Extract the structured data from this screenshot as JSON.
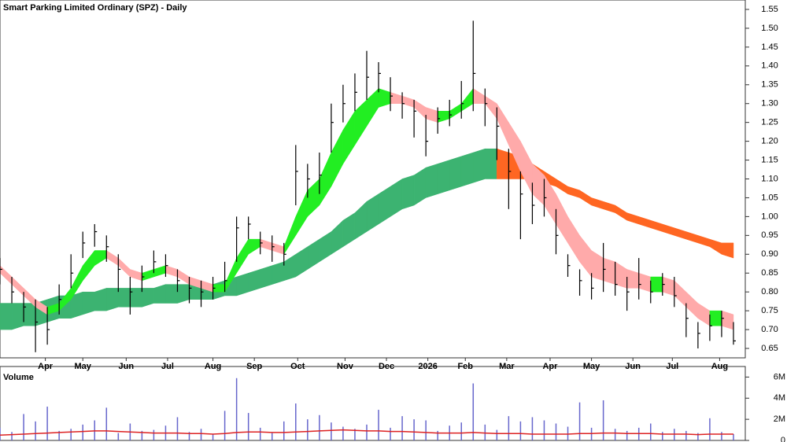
{
  "chart_data": {
    "type": "ohlc",
    "title": "Smart Parking Limited Ordinary (SPZ) - Daily",
    "x": [
      0,
      6,
      12,
      18,
      24,
      30,
      36,
      42,
      48,
      54,
      60,
      66,
      72,
      78,
      84,
      90,
      96,
      102,
      108,
      114,
      120,
      126,
      132,
      138,
      144,
      150,
      156,
      162,
      168,
      174,
      180,
      186,
      192,
      198,
      204,
      210,
      216,
      222,
      228,
      234,
      240,
      246,
      252,
      258,
      264,
      270,
      276,
      282,
      288,
      294,
      300,
      306,
      312,
      318,
      324,
      330,
      336,
      342,
      348,
      354,
      360,
      366,
      372
    ],
    "xlim": [
      0,
      378
    ],
    "xticks": [
      {
        "value": 23,
        "label": "Apr"
      },
      {
        "value": 42,
        "label": "May"
      },
      {
        "value": 64,
        "label": "Jun"
      },
      {
        "value": 85,
        "label": "Jul"
      },
      {
        "value": 108,
        "label": "Aug"
      },
      {
        "value": 129,
        "label": "Sep"
      },
      {
        "value": 151,
        "label": "Oct"
      },
      {
        "value": 175,
        "label": "Nov"
      },
      {
        "value": 196,
        "label": "Dec"
      },
      {
        "value": 217,
        "label": "2026"
      },
      {
        "value": 236,
        "label": "Feb"
      },
      {
        "value": 257,
        "label": "Mar"
      },
      {
        "value": 279,
        "label": "Apr"
      },
      {
        "value": 300,
        "label": "May"
      },
      {
        "value": 321,
        "label": "Jun"
      },
      {
        "value": 341,
        "label": "Jul"
      },
      {
        "value": 365,
        "label": "Aug"
      }
    ],
    "ylim": [
      0.625,
      1.575
    ],
    "yticks": [
      1.55,
      {
        "value": 1.5,
        "label": "1.50"
      },
      1.45,
      {
        "value": 1.4,
        "label": "1.40"
      },
      1.35,
      {
        "value": 1.3,
        "label": "1.30"
      },
      1.25,
      {
        "value": 1.2,
        "label": "1.20"
      },
      1.15,
      {
        "value": 1.1,
        "label": "1.10"
      },
      1.05,
      {
        "value": 1.0,
        "label": "1.00"
      },
      0.95,
      {
        "value": 0.9,
        "label": "0.90"
      },
      0.85,
      {
        "value": 0.8,
        "label": "0.80"
      },
      0.75,
      {
        "value": 0.7,
        "label": "0.70"
      },
      0.65
    ],
    "bar_color": "#000000",
    "high": [
      0.89,
      0.84,
      0.8,
      0.78,
      0.76,
      0.82,
      0.9,
      0.96,
      0.98,
      0.95,
      0.9,
      0.84,
      0.87,
      0.91,
      0.9,
      0.86,
      0.84,
      0.83,
      0.84,
      0.88,
      1.0,
      1.0,
      0.96,
      0.95,
      0.93,
      1.19,
      1.14,
      1.17,
      1.3,
      1.35,
      1.38,
      1.44,
      1.41,
      1.37,
      1.33,
      1.31,
      1.27,
      1.29,
      1.31,
      1.36,
      1.52,
      1.34,
      1.29,
      1.18,
      1.12,
      1.09,
      1.1,
      1.02,
      0.9,
      0.86,
      0.85,
      0.93,
      0.88,
      0.84,
      0.89,
      0.83,
      0.85,
      0.84,
      0.77,
      0.72,
      0.74,
      0.75,
      0.72
    ],
    "low": [
      0.82,
      0.77,
      0.72,
      0.64,
      0.66,
      0.74,
      0.81,
      0.89,
      0.92,
      0.88,
      0.8,
      0.74,
      0.8,
      0.85,
      0.84,
      0.8,
      0.77,
      0.76,
      0.78,
      0.8,
      0.88,
      0.94,
      0.9,
      0.88,
      0.87,
      1.03,
      1.05,
      1.06,
      1.17,
      1.25,
      1.28,
      1.31,
      1.33,
      1.28,
      1.26,
      1.21,
      1.16,
      1.22,
      1.24,
      1.26,
      1.28,
      1.24,
      1.15,
      1.02,
      0.94,
      0.98,
      1.0,
      0.9,
      0.84,
      0.79,
      0.78,
      0.8,
      0.79,
      0.75,
      0.78,
      0.77,
      0.79,
      0.76,
      0.68,
      0.65,
      0.67,
      0.68,
      0.66
    ],
    "close": [
      0.86,
      0.8,
      0.76,
      0.72,
      0.7,
      0.78,
      0.85,
      0.93,
      0.96,
      0.92,
      0.86,
      0.8,
      0.84,
      0.88,
      0.87,
      0.83,
      0.81,
      0.8,
      0.81,
      0.83,
      0.97,
      0.98,
      0.93,
      0.92,
      0.9,
      1.12,
      1.1,
      1.11,
      1.25,
      1.3,
      1.33,
      1.37,
      1.38,
      1.32,
      1.3,
      1.28,
      1.2,
      1.26,
      1.27,
      1.3,
      1.38,
      1.3,
      1.24,
      1.12,
      1.06,
      1.03,
      1.05,
      0.95,
      0.87,
      0.83,
      0.81,
      0.86,
      0.82,
      0.8,
      0.82,
      0.8,
      0.82,
      0.79,
      0.73,
      0.69,
      0.71,
      0.73,
      0.67
    ],
    "ribbons": [
      {
        "up_color": "#3cb371",
        "down_color": "#ff6622",
        "upper": [
          0.77,
          0.77,
          0.77,
          0.77,
          0.78,
          0.79,
          0.79,
          0.8,
          0.8,
          0.81,
          0.81,
          0.81,
          0.81,
          0.81,
          0.82,
          0.82,
          0.82,
          0.82,
          0.82,
          0.83,
          0.84,
          0.85,
          0.86,
          0.87,
          0.88,
          0.9,
          0.92,
          0.94,
          0.96,
          0.99,
          1.01,
          1.04,
          1.06,
          1.08,
          1.1,
          1.11,
          1.13,
          1.14,
          1.15,
          1.16,
          1.17,
          1.18,
          1.18,
          1.17,
          1.16,
          1.14,
          1.12,
          1.1,
          1.08,
          1.07,
          1.05,
          1.04,
          1.03,
          1.01,
          1.0,
          0.99,
          0.98,
          0.97,
          0.96,
          0.95,
          0.94,
          0.93,
          0.93
        ],
        "lower": [
          0.7,
          0.7,
          0.71,
          0.71,
          0.72,
          0.73,
          0.73,
          0.74,
          0.75,
          0.75,
          0.76,
          0.76,
          0.76,
          0.77,
          0.77,
          0.77,
          0.78,
          0.78,
          0.78,
          0.79,
          0.79,
          0.8,
          0.81,
          0.82,
          0.83,
          0.84,
          0.86,
          0.88,
          0.9,
          0.92,
          0.94,
          0.96,
          0.98,
          1.0,
          1.02,
          1.03,
          1.05,
          1.06,
          1.07,
          1.08,
          1.09,
          1.1,
          1.1,
          1.1,
          1.1,
          1.1,
          1.09,
          1.08,
          1.06,
          1.05,
          1.03,
          1.02,
          1.01,
          0.99,
          0.98,
          0.97,
          0.96,
          0.95,
          0.94,
          0.93,
          0.92,
          0.9,
          0.89
        ]
      },
      {
        "up_color": "#22ee22",
        "down_color": "#ffaaaa",
        "upper": [
          0.87,
          0.84,
          0.81,
          0.78,
          0.76,
          0.77,
          0.81,
          0.87,
          0.91,
          0.91,
          0.89,
          0.86,
          0.85,
          0.86,
          0.87,
          0.86,
          0.84,
          0.83,
          0.82,
          0.82,
          0.89,
          0.94,
          0.94,
          0.93,
          0.92,
          1.0,
          1.07,
          1.1,
          1.17,
          1.23,
          1.28,
          1.31,
          1.34,
          1.33,
          1.32,
          1.31,
          1.29,
          1.28,
          1.28,
          1.3,
          1.34,
          1.32,
          1.3,
          1.25,
          1.2,
          1.14,
          1.11,
          1.06,
          1.0,
          0.95,
          0.91,
          0.89,
          0.88,
          0.86,
          0.85,
          0.84,
          0.84,
          0.83,
          0.8,
          0.77,
          0.75,
          0.75,
          0.74
        ],
        "lower": [
          0.85,
          0.82,
          0.79,
          0.76,
          0.74,
          0.75,
          0.78,
          0.83,
          0.87,
          0.89,
          0.87,
          0.84,
          0.83,
          0.84,
          0.85,
          0.84,
          0.82,
          0.81,
          0.8,
          0.8,
          0.85,
          0.9,
          0.92,
          0.91,
          0.9,
          0.95,
          1.0,
          1.03,
          1.08,
          1.14,
          1.19,
          1.24,
          1.29,
          1.3,
          1.3,
          1.29,
          1.26,
          1.25,
          1.26,
          1.28,
          1.3,
          1.3,
          1.26,
          1.19,
          1.12,
          1.06,
          1.03,
          0.98,
          0.93,
          0.88,
          0.84,
          0.83,
          0.82,
          0.81,
          0.81,
          0.8,
          0.8,
          0.79,
          0.76,
          0.73,
          0.71,
          0.71,
          0.7
        ]
      }
    ],
    "volume": {
      "label": "Volume",
      "color": "#6666cc",
      "ma_color": "#dd2222",
      "ylim": [
        0,
        7000000
      ],
      "yticks": [
        0,
        {
          "value": 2000000,
          "label": "2M"
        },
        {
          "value": 4000000,
          "label": "4M"
        },
        {
          "value": 6000000,
          "label": "6M"
        }
      ],
      "values": [
        1200000,
        800000,
        2500000,
        1800000,
        3200000,
        900000,
        1100000,
        1500000,
        1900000,
        3100000,
        700000,
        1600000,
        900000,
        1000000,
        1400000,
        2200000,
        800000,
        1100000,
        600000,
        2800000,
        5900000,
        2600000,
        1200000,
        700000,
        1800000,
        3500000,
        2000000,
        2400000,
        1700000,
        1300000,
        1100000,
        1500000,
        2900000,
        1200000,
        2300000,
        2000000,
        1900000,
        900000,
        1400000,
        1700000,
        5400000,
        1500000,
        1000000,
        2300000,
        1800000,
        2200000,
        1900000,
        1600000,
        1300000,
        3600000,
        1200000,
        3800000,
        1100000,
        900000,
        1200000,
        1600000,
        800000,
        1100000,
        900000,
        700000,
        2100000,
        800000,
        600000
      ],
      "ma": [
        500000,
        550000,
        600000,
        650000,
        700000,
        750000,
        800000,
        850000,
        900000,
        900000,
        850000,
        800000,
        750000,
        700000,
        700000,
        700000,
        650000,
        650000,
        600000,
        650000,
        750000,
        800000,
        800000,
        750000,
        750000,
        800000,
        850000,
        900000,
        950000,
        1000000,
        950000,
        900000,
        900000,
        850000,
        850000,
        800000,
        750000,
        700000,
        700000,
        700000,
        750000,
        700000,
        650000,
        650000,
        650000,
        600000,
        600000,
        600000,
        600000,
        650000,
        650000,
        700000,
        700000,
        650000,
        650000,
        650000,
        600000,
        600000,
        600000,
        550000,
        600000,
        600000,
        600000
      ]
    }
  }
}
